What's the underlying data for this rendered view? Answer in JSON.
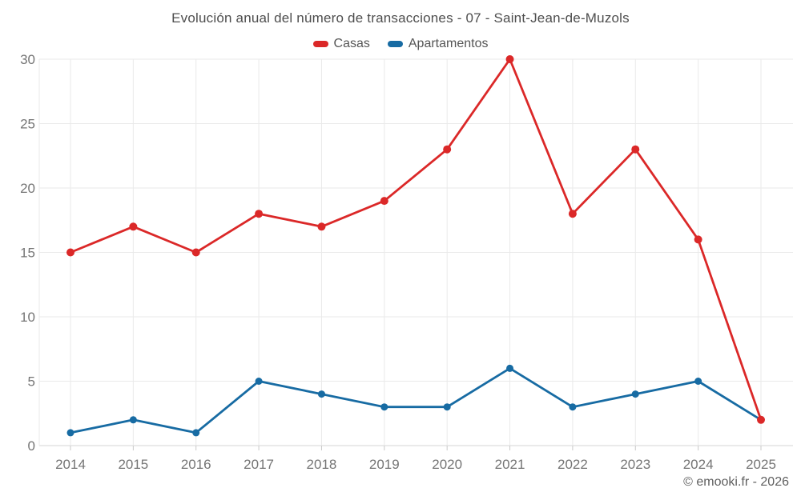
{
  "chart_data": {
    "type": "line",
    "title": "Evolución anual del número de transacciones - 07 - Saint-Jean-de-Muzols",
    "categories": [
      "2014",
      "2015",
      "2016",
      "2017",
      "2018",
      "2019",
      "2020",
      "2021",
      "2022",
      "2023",
      "2024",
      "2025"
    ],
    "series": [
      {
        "name": "Casas",
        "color": "#db2828",
        "values": [
          15,
          17,
          15,
          18,
          17,
          19,
          23,
          30,
          18,
          23,
          16,
          2
        ]
      },
      {
        "name": "Apartamentos",
        "color": "#176ba3",
        "values": [
          1,
          2,
          1,
          5,
          4,
          3,
          3,
          6,
          3,
          4,
          5,
          2
        ]
      }
    ],
    "ylim": [
      0,
      30
    ],
    "yticks": [
      0,
      5,
      10,
      15,
      20,
      25,
      30
    ],
    "grid": true,
    "legend_position": "top",
    "xlabel": "",
    "ylabel": "",
    "footer": "© emooki.fr - 2026"
  }
}
